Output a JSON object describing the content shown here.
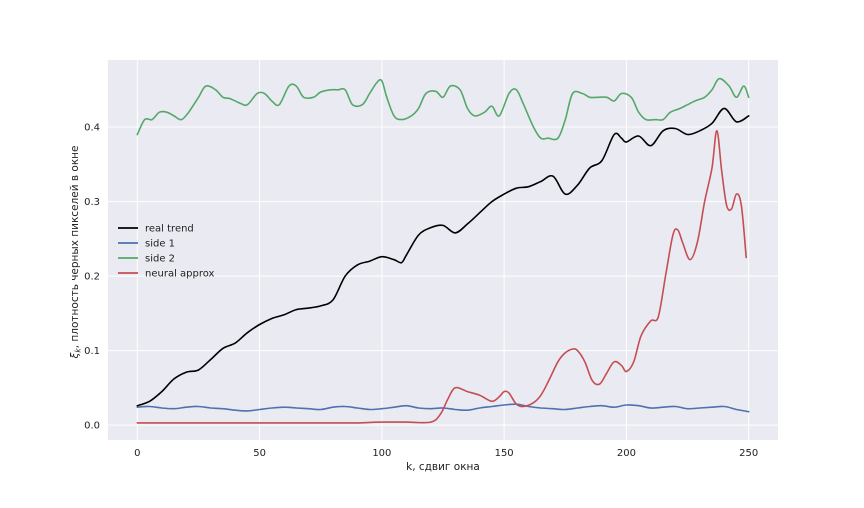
{
  "chart_data": {
    "type": "line",
    "title": "",
    "xlabel": "k, сдвиг окна",
    "ylabel_main": "ξ",
    "ylabel_sub": "k",
    "ylabel_rest": ", плотность черных пикселей в окне",
    "xlim": [
      -12,
      262
    ],
    "ylim": [
      -0.02,
      0.49
    ],
    "xticks": [
      0,
      50,
      100,
      150,
      200,
      250
    ],
    "xtick_labels": [
      "0",
      "50",
      "100",
      "150",
      "200",
      "250"
    ],
    "yticks": [
      0.0,
      0.1,
      0.2,
      0.3,
      0.4
    ],
    "ytick_labels": [
      "0.0",
      "0.1",
      "0.2",
      "0.3",
      "0.4"
    ],
    "grid": true,
    "legend_position": "center-left",
    "background": "#eaeaf2",
    "series": [
      {
        "name": "real trend",
        "color": "#000000",
        "x": [
          0,
          5,
          10,
          15,
          20,
          25,
          30,
          35,
          40,
          45,
          50,
          55,
          60,
          65,
          70,
          75,
          80,
          85,
          90,
          95,
          100,
          105,
          108,
          110,
          115,
          120,
          125,
          130,
          135,
          140,
          145,
          150,
          155,
          160,
          165,
          170,
          175,
          180,
          185,
          190,
          195,
          198,
          200,
          205,
          210,
          215,
          220,
          225,
          230,
          235,
          240,
          245,
          250
        ],
        "y": [
          0.026,
          0.032,
          0.045,
          0.062,
          0.071,
          0.074,
          0.088,
          0.103,
          0.11,
          0.124,
          0.135,
          0.143,
          0.148,
          0.155,
          0.157,
          0.16,
          0.168,
          0.2,
          0.215,
          0.22,
          0.226,
          0.222,
          0.218,
          0.228,
          0.255,
          0.265,
          0.268,
          0.258,
          0.27,
          0.285,
          0.3,
          0.31,
          0.318,
          0.32,
          0.327,
          0.334,
          0.31,
          0.322,
          0.345,
          0.355,
          0.39,
          0.385,
          0.38,
          0.388,
          0.375,
          0.395,
          0.398,
          0.39,
          0.395,
          0.405,
          0.425,
          0.407,
          0.415
        ]
      },
      {
        "name": "side 1",
        "color": "#4c72b0",
        "x": [
          0,
          5,
          10,
          15,
          20,
          25,
          30,
          35,
          40,
          45,
          50,
          55,
          60,
          65,
          70,
          75,
          80,
          85,
          90,
          95,
          100,
          105,
          110,
          115,
          120,
          125,
          130,
          135,
          140,
          145,
          150,
          155,
          160,
          165,
          170,
          175,
          180,
          185,
          190,
          195,
          200,
          205,
          210,
          215,
          220,
          225,
          230,
          235,
          240,
          245,
          250
        ],
        "y": [
          0.024,
          0.025,
          0.023,
          0.022,
          0.024,
          0.025,
          0.023,
          0.022,
          0.02,
          0.019,
          0.021,
          0.023,
          0.024,
          0.023,
          0.022,
          0.021,
          0.024,
          0.025,
          0.023,
          0.021,
          0.022,
          0.024,
          0.026,
          0.023,
          0.022,
          0.023,
          0.021,
          0.02,
          0.023,
          0.025,
          0.027,
          0.028,
          0.025,
          0.023,
          0.022,
          0.021,
          0.023,
          0.025,
          0.026,
          0.024,
          0.027,
          0.026,
          0.023,
          0.024,
          0.025,
          0.022,
          0.023,
          0.024,
          0.025,
          0.021,
          0.018
        ]
      },
      {
        "name": "side 2",
        "color": "#55a868",
        "x": [
          0,
          3,
          6,
          9,
          12,
          15,
          18,
          21,
          25,
          28,
          32,
          35,
          38,
          42,
          45,
          49,
          52,
          55,
          58,
          62,
          65,
          68,
          72,
          75,
          79,
          82,
          85,
          88,
          92,
          95,
          98,
          100,
          102,
          105,
          108,
          112,
          115,
          118,
          122,
          125,
          128,
          132,
          135,
          138,
          142,
          145,
          148,
          152,
          155,
          158,
          162,
          165,
          168,
          172,
          175,
          178,
          182,
          185,
          188,
          192,
          195,
          198,
          202,
          205,
          208,
          212,
          215,
          218,
          222,
          225,
          228,
          232,
          235,
          238,
          242,
          245,
          248,
          250
        ],
        "y": [
          0.39,
          0.41,
          0.41,
          0.42,
          0.42,
          0.415,
          0.41,
          0.42,
          0.44,
          0.455,
          0.45,
          0.44,
          0.438,
          0.432,
          0.43,
          0.445,
          0.445,
          0.435,
          0.43,
          0.455,
          0.455,
          0.44,
          0.44,
          0.447,
          0.45,
          0.45,
          0.45,
          0.43,
          0.43,
          0.445,
          0.46,
          0.462,
          0.44,
          0.415,
          0.41,
          0.415,
          0.425,
          0.445,
          0.448,
          0.44,
          0.455,
          0.45,
          0.425,
          0.415,
          0.42,
          0.428,
          0.415,
          0.445,
          0.45,
          0.43,
          0.4,
          0.385,
          0.385,
          0.385,
          0.41,
          0.445,
          0.445,
          0.44,
          0.44,
          0.44,
          0.435,
          0.445,
          0.44,
          0.42,
          0.41,
          0.41,
          0.41,
          0.42,
          0.425,
          0.43,
          0.435,
          0.44,
          0.45,
          0.465,
          0.455,
          0.44,
          0.455,
          0.44
        ]
      },
      {
        "name": "neural approx",
        "color": "#c44e52",
        "x": [
          0,
          10,
          20,
          30,
          40,
          50,
          60,
          70,
          80,
          90,
          100,
          110,
          120,
          124,
          127,
          130,
          135,
          140,
          145,
          148,
          150,
          152,
          155,
          158,
          162,
          165,
          168,
          172,
          175,
          178,
          180,
          183,
          186,
          189,
          192,
          195,
          198,
          200,
          203,
          206,
          210,
          213,
          216,
          219,
          221,
          223,
          226,
          229,
          232,
          235,
          237,
          239,
          241,
          243,
          245,
          247,
          249
        ],
        "y": [
          0.003,
          0.003,
          0.003,
          0.003,
          0.003,
          0.003,
          0.003,
          0.003,
          0.003,
          0.003,
          0.004,
          0.004,
          0.004,
          0.015,
          0.035,
          0.05,
          0.045,
          0.04,
          0.032,
          0.038,
          0.045,
          0.043,
          0.028,
          0.025,
          0.03,
          0.04,
          0.058,
          0.085,
          0.097,
          0.102,
          0.1,
          0.085,
          0.06,
          0.055,
          0.07,
          0.085,
          0.08,
          0.072,
          0.085,
          0.12,
          0.14,
          0.145,
          0.2,
          0.255,
          0.262,
          0.245,
          0.222,
          0.245,
          0.3,
          0.345,
          0.395,
          0.34,
          0.295,
          0.29,
          0.31,
          0.295,
          0.225
        ]
      }
    ]
  }
}
